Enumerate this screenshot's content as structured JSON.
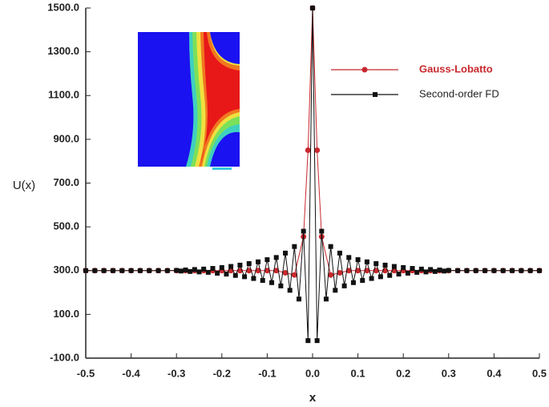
{
  "chart_data": {
    "type": "line",
    "xlabel": "x",
    "ylabel": "U(x)",
    "xlim": [
      -0.5,
      0.5
    ],
    "xticks": [
      -0.5,
      -0.4,
      -0.3,
      -0.2,
      -0.1,
      {
        "value": 0,
        "label": "0.0"
      },
      0.1,
      0.2,
      0.3,
      0.4,
      0.5
    ],
    "ylim": [
      -100,
      1500
    ],
    "yticks": [
      {
        "value": -100,
        "label": "-100.0"
      },
      {
        "value": 100,
        "label": "100.0"
      },
      {
        "value": 300,
        "label": "300.0"
      },
      {
        "value": 500,
        "label": "500.0"
      },
      {
        "value": 700,
        "label": "700.0"
      },
      {
        "value": 900,
        "label": "900.0"
      },
      {
        "value": 1100,
        "label": "1100.0"
      },
      {
        "value": 1300,
        "label": "1300.0"
      },
      {
        "value": 1500,
        "label": "1500.0"
      }
    ],
    "legend": "upper right",
    "series": [
      {
        "name": "Gauss-Lobatto",
        "color": "#c8282d",
        "marker": "circle",
        "x": [
          -0.5,
          -0.48,
          -0.46,
          -0.44,
          -0.42,
          -0.4,
          -0.38,
          -0.36,
          -0.34,
          -0.32,
          -0.3,
          -0.28,
          -0.26,
          -0.24,
          -0.22,
          -0.2,
          -0.18,
          -0.16,
          -0.14,
          -0.12,
          -0.1,
          -0.08,
          -0.06,
          -0.04,
          -0.02,
          -0.01,
          0,
          0.01,
          0.02,
          0.04,
          0.06,
          0.08,
          0.1,
          0.12,
          0.14,
          0.16,
          0.18,
          0.2,
          0.22,
          0.24,
          0.26,
          0.28,
          0.3,
          0.32,
          0.34,
          0.36,
          0.38,
          0.4,
          0.42,
          0.44,
          0.46,
          0.48,
          0.5
        ],
        "values": [
          300,
          300,
          300,
          300,
          300,
          300,
          300,
          300,
          300,
          300,
          300,
          300,
          300,
          300,
          300,
          300,
          300,
          300,
          300,
          300,
          300,
          300,
          290,
          280,
          455,
          850,
          1500,
          850,
          455,
          280,
          290,
          300,
          300,
          300,
          300,
          300,
          300,
          300,
          300,
          300,
          300,
          300,
          300,
          300,
          300,
          300,
          300,
          300,
          300,
          300,
          300,
          300,
          300
        ]
      },
      {
        "name": "Second-order FD",
        "color": "#111111",
        "marker": "square",
        "x": [
          -0.5,
          -0.48,
          -0.46,
          -0.44,
          -0.42,
          -0.4,
          -0.38,
          -0.36,
          -0.34,
          -0.32,
          -0.3,
          -0.29,
          -0.28,
          -0.27,
          -0.26,
          -0.25,
          -0.24,
          -0.23,
          -0.22,
          -0.21,
          -0.2,
          -0.19,
          -0.18,
          -0.17,
          -0.16,
          -0.15,
          -0.14,
          -0.13,
          -0.12,
          -0.11,
          -0.1,
          -0.09,
          -0.08,
          -0.07,
          -0.06,
          -0.05,
          -0.04,
          -0.03,
          -0.02,
          -0.01,
          0,
          0.01,
          0.02,
          0.03,
          0.04,
          0.05,
          0.06,
          0.07,
          0.08,
          0.09,
          0.1,
          0.11,
          0.12,
          0.13,
          0.14,
          0.15,
          0.16,
          0.17,
          0.18,
          0.19,
          0.2,
          0.21,
          0.22,
          0.23,
          0.24,
          0.25,
          0.26,
          0.27,
          0.28,
          0.29,
          0.3,
          0.32,
          0.34,
          0.36,
          0.38,
          0.4,
          0.42,
          0.44,
          0.46,
          0.48,
          0.5
        ],
        "values": [
          300,
          300,
          300,
          300,
          300,
          300,
          300,
          300,
          300,
          300,
          301,
          298,
          303,
          296,
          305,
          294,
          307,
          292,
          310,
          288,
          314,
          284,
          319,
          278,
          325,
          272,
          332,
          264,
          340,
          255,
          350,
          245,
          360,
          230,
          380,
          210,
          410,
          170,
          480,
          -20,
          1500,
          -20,
          480,
          170,
          410,
          210,
          380,
          230,
          360,
          245,
          350,
          255,
          340,
          264,
          332,
          272,
          325,
          278,
          319,
          284,
          314,
          288,
          310,
          292,
          307,
          294,
          305,
          296,
          303,
          298,
          301,
          300,
          300,
          300,
          300,
          300,
          300,
          300,
          300,
          300,
          300
        ]
      }
    ]
  }
}
